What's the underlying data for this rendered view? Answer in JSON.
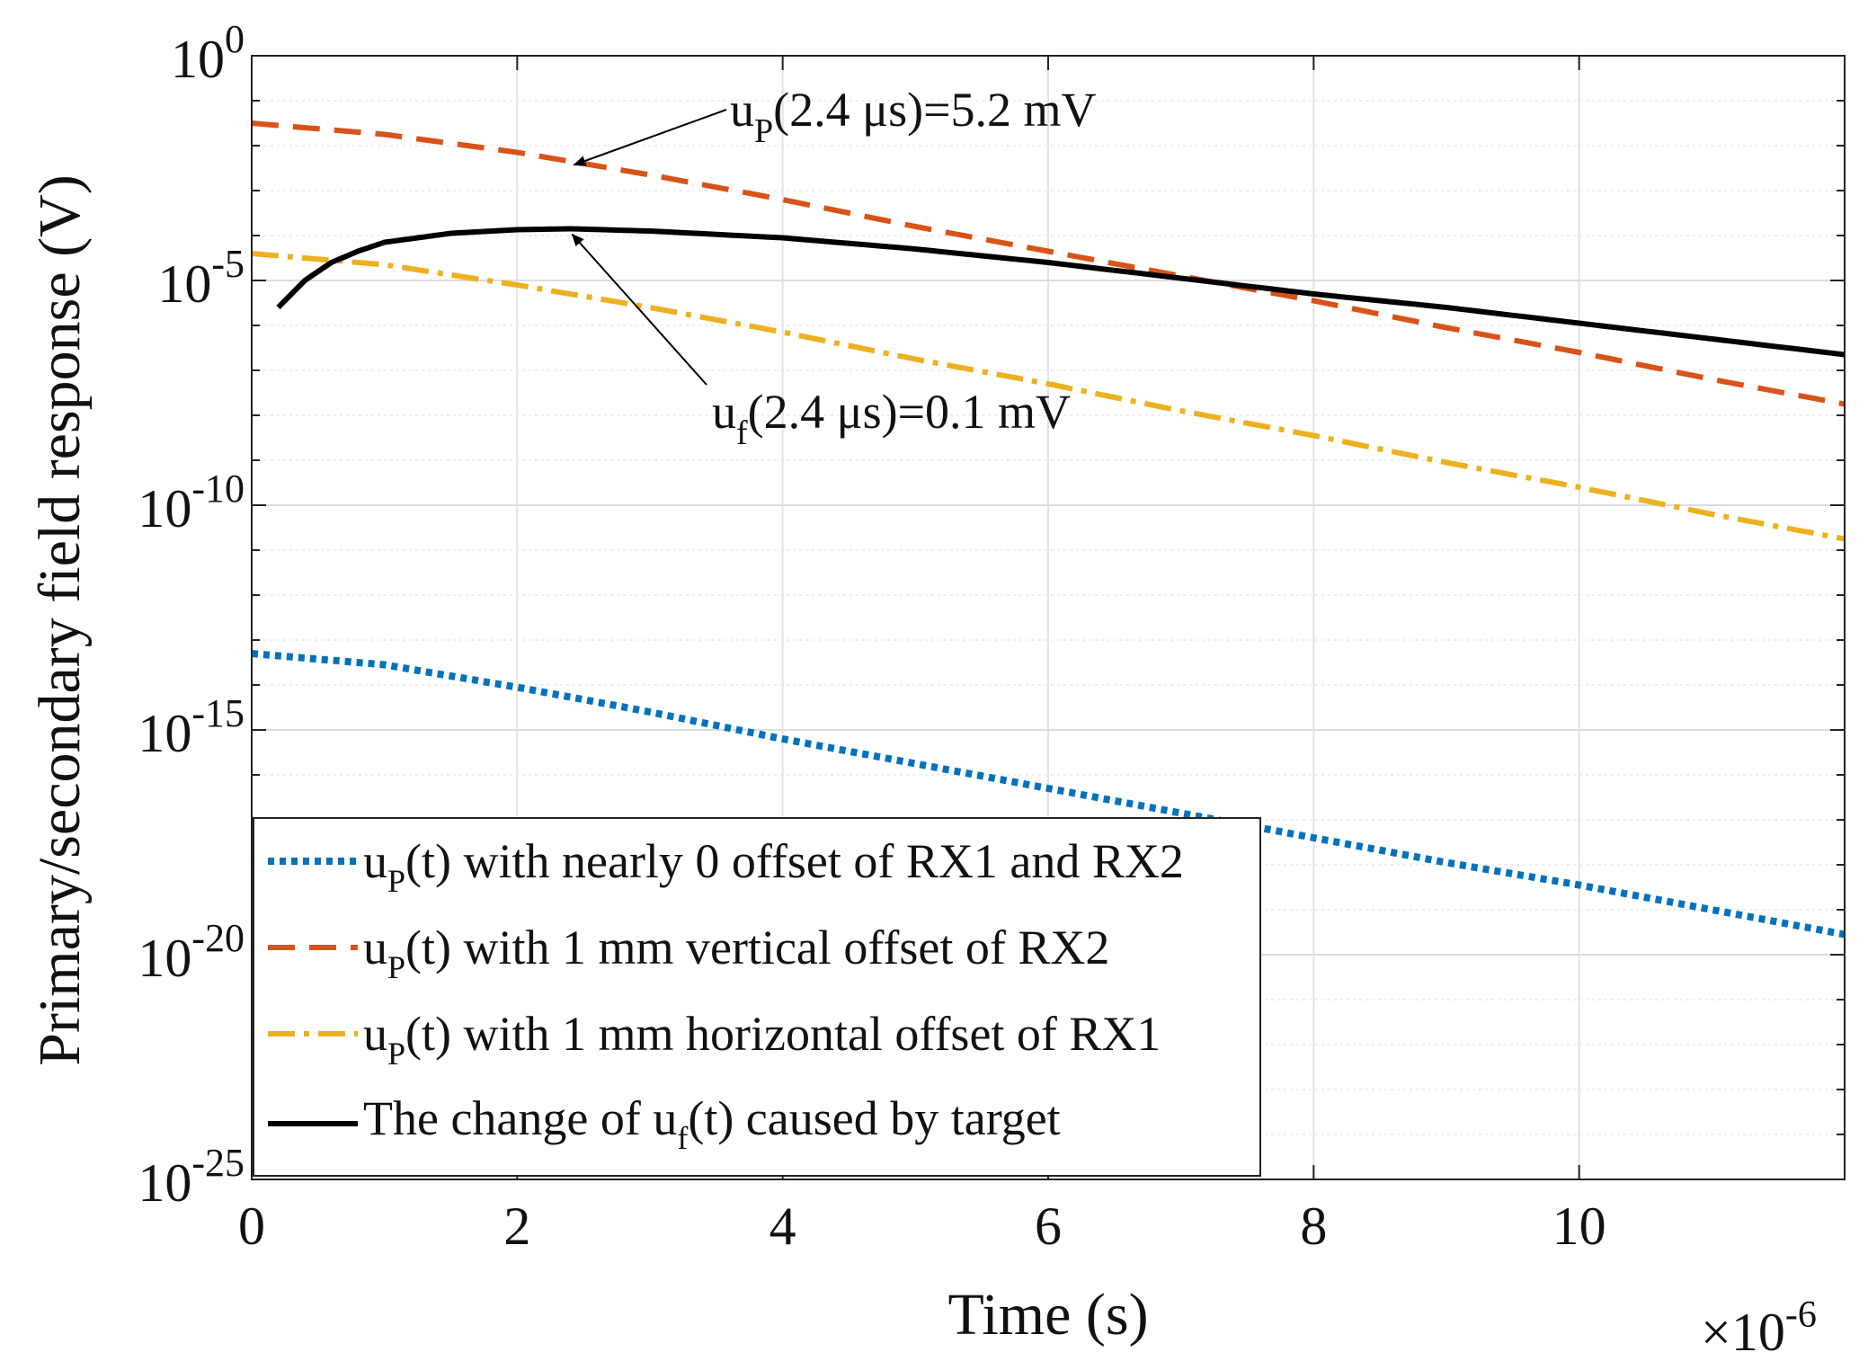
{
  "chart_data": {
    "type": "line",
    "title": "",
    "xlabel": "Time (s)",
    "ylabel": "Primary/secondary field response (V)",
    "x_multiplier_label": "×10",
    "x_multiplier_exp": "-6",
    "xlim": [
      0,
      12
    ],
    "ylim_log10": [
      -25,
      0
    ],
    "yscale": "log",
    "grid": true,
    "x_ticks": [
      {
        "value": 0,
        "label": "0"
      },
      {
        "value": 2,
        "label": "2"
      },
      {
        "value": 4,
        "label": "4"
      },
      {
        "value": 6,
        "label": "6"
      },
      {
        "value": 8,
        "label": "8"
      },
      {
        "value": 10,
        "label": "10"
      }
    ],
    "y_ticks": [
      {
        "log10": 0,
        "base": "10",
        "exp": "0"
      },
      {
        "log10": -5,
        "base": "10",
        "exp": "-5"
      },
      {
        "log10": -10,
        "base": "10",
        "exp": "-10"
      },
      {
        "log10": -15,
        "base": "10",
        "exp": "-15"
      },
      {
        "log10": -20,
        "base": "10",
        "exp": "-20"
      },
      {
        "log10": -25,
        "base": "10",
        "exp": "-25"
      }
    ],
    "legend_position": "bottom-left",
    "series": [
      {
        "key": "dotted",
        "color": "#0072BD",
        "dash": "dotted",
        "legend": {
          "pre": "u",
          "sub": "P",
          "post": "(t) with nearly 0 offset of RX1 and RX2"
        },
        "x": [
          0,
          1,
          2,
          3,
          4,
          5,
          6,
          7,
          8,
          9,
          10,
          11,
          12
        ],
        "log10_y": [
          -13.3,
          -13.55,
          -14.05,
          -14.6,
          -15.2,
          -15.75,
          -16.3,
          -16.85,
          -17.4,
          -17.95,
          -18.45,
          -19.0,
          -19.55
        ]
      },
      {
        "key": "dashed",
        "color": "#D95319",
        "dash": "dashed",
        "legend": {
          "pre": "u",
          "sub": "P",
          "post": "(t) with 1 mm vertical offset of RX2"
        },
        "x": [
          0,
          1,
          2,
          3,
          4,
          5,
          6,
          7,
          8,
          9,
          10,
          11,
          12
        ],
        "log10_y": [
          -1.5,
          -1.75,
          -2.15,
          -2.65,
          -3.2,
          -3.8,
          -4.35,
          -4.9,
          -5.45,
          -6.05,
          -6.6,
          -7.2,
          -7.75
        ]
      },
      {
        "key": "dashdot",
        "color": "#EDB120",
        "dash": "dash-dot",
        "legend": {
          "pre": "u",
          "sub": "P",
          "post": "(t) with 1 mm horizontal offset of RX1"
        },
        "x": [
          0,
          1,
          2,
          3,
          4,
          5,
          6,
          7,
          8,
          9,
          10,
          11,
          12
        ],
        "log10_y": [
          -4.4,
          -4.65,
          -5.1,
          -5.6,
          -6.15,
          -6.75,
          -7.3,
          -7.9,
          -8.45,
          -9.05,
          -9.6,
          -10.2,
          -10.75
        ]
      },
      {
        "key": "solid",
        "color": "#000000",
        "dash": "solid",
        "legend": {
          "pre": "The change of u",
          "sub": "f",
          "post": "(t) caused by target"
        },
        "x": [
          0.2,
          0.4,
          0.6,
          0.8,
          1.0,
          1.5,
          2.0,
          2.4,
          3,
          4,
          5,
          6,
          7,
          8,
          9,
          10,
          11,
          12
        ],
        "log10_y": [
          -5.6,
          -5.0,
          -4.6,
          -4.35,
          -4.15,
          -3.95,
          -3.87,
          -3.85,
          -3.9,
          -4.05,
          -4.3,
          -4.6,
          -4.95,
          -5.3,
          -5.6,
          -5.95,
          -6.3,
          -6.65
        ]
      }
    ],
    "annotations": [
      {
        "key": "up",
        "pre": "u",
        "sub": "P",
        "post": "(2.4 μs)=5.2 mV",
        "x": 2.4,
        "series": "dashed"
      },
      {
        "key": "uf",
        "pre": "u",
        "sub": "f",
        "post": "(2.4 μs)=0.1 mV",
        "x": 2.4,
        "series": "solid"
      }
    ]
  }
}
